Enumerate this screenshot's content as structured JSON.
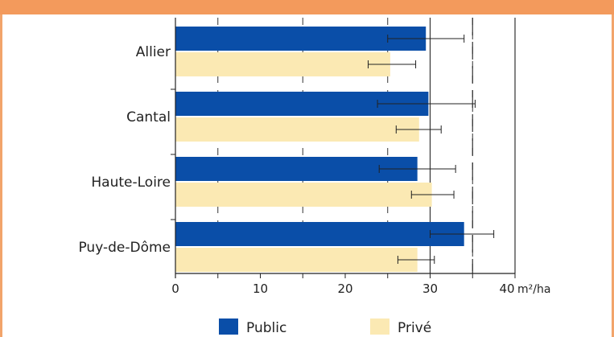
{
  "chart_data": {
    "type": "bar",
    "orientation": "horizontal",
    "title": "",
    "categories": [
      "Allier",
      "Cantal",
      "Haute-Loire",
      "Puy-de-Dôme"
    ],
    "series": [
      {
        "name": "Public",
        "color": "#0a4ea8",
        "values": [
          29.5,
          29.8,
          28.5,
          34.0
        ],
        "error_low": [
          25.0,
          23.8,
          24.0,
          30.0
        ],
        "error_high": [
          34.0,
          35.3,
          33.0,
          37.5
        ]
      },
      {
        "name": "Privé",
        "color": "#fbe9b3",
        "values": [
          25.3,
          28.7,
          30.2,
          28.5
        ],
        "error_low": [
          22.7,
          26.0,
          27.8,
          26.2
        ],
        "error_high": [
          28.3,
          31.3,
          32.8,
          30.5
        ]
      }
    ],
    "xlim": [
      0,
      40
    ],
    "xticks": [
      "0",
      "10",
      "20",
      "30",
      "40"
    ],
    "xlabel": "m²/ha",
    "gridlines": [
      5,
      15,
      25,
      35
    ],
    "reference_lines": [
      {
        "value": 30,
        "style": "solid"
      },
      {
        "value": 35,
        "style": "long-dash"
      }
    ],
    "legend_position": "bottom"
  }
}
